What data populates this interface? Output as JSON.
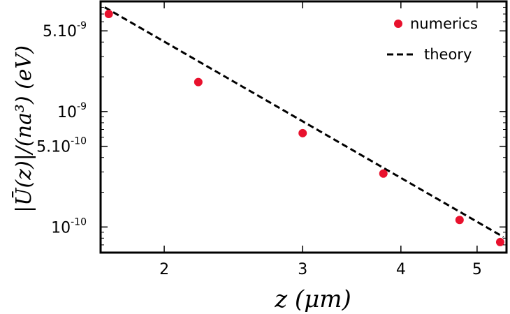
{
  "chart_data": {
    "type": "scatter",
    "xlabel": "z (μm)",
    "ylabel": "|Ū(z)|/(na³) (eV)",
    "x_scale": "log",
    "y_scale": "log",
    "xlim": [
      1.66,
      5.45
    ],
    "ylim": [
      6e-11,
      9e-09
    ],
    "x_ticks": [
      {
        "value": 2,
        "label": "2"
      },
      {
        "value": 3,
        "label": "3"
      },
      {
        "value": 4,
        "label": "4"
      },
      {
        "value": 5,
        "label": "5"
      }
    ],
    "y_ticks": [
      {
        "value": 1e-10,
        "mantissa": "10",
        "exp": "-10"
      },
      {
        "value": 5e-10,
        "mantissa": "5.10",
        "exp": "-10"
      },
      {
        "value": 1e-09,
        "mantissa": "10",
        "exp": "-9"
      },
      {
        "value": 5e-09,
        "mantissa": "5.10",
        "exp": "-9"
      }
    ],
    "legend_position": "top-right",
    "series": [
      {
        "name": "numerics",
        "kind": "points",
        "color": "#e8112d",
        "points": [
          [
            1.7,
            7e-09
          ],
          [
            2.21,
            1.8e-09
          ],
          [
            3.0,
            6.5e-10
          ],
          [
            3.8,
            2.9e-10
          ],
          [
            4.75,
            1.15e-10
          ],
          [
            5.35,
            7.4e-11
          ]
        ]
      },
      {
        "name": "theory",
        "kind": "line",
        "style": "dashed",
        "color": "#000000",
        "points": [
          [
            1.68,
            8e-09
          ],
          [
            5.4,
            8.2e-11
          ]
        ]
      }
    ]
  }
}
